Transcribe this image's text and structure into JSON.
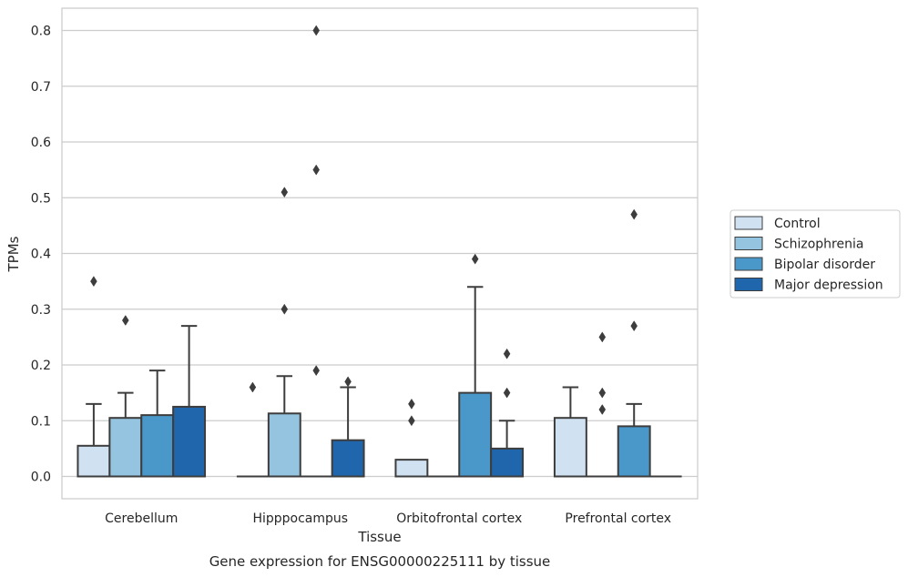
{
  "chart_data": {
    "type": "box",
    "title": "",
    "caption": "Gene expression for ENSG00000225111 by tissue",
    "xlabel": "Tissue",
    "ylabel": "TPMs",
    "ylim": [
      -0.04,
      0.84
    ],
    "yticks": [
      0.0,
      0.1,
      0.2,
      0.3,
      0.4,
      0.5,
      0.6,
      0.7,
      0.8
    ],
    "ytick_labels": [
      "0.0",
      "0.1",
      "0.2",
      "0.3",
      "0.4",
      "0.5",
      "0.6",
      "0.7",
      "0.8"
    ],
    "grid": true,
    "legend_position": "right",
    "categories": [
      "Cerebellum",
      "Hipppocampus",
      "Orbitofrontal cortex",
      "Prefrontal cortex"
    ],
    "series": [
      {
        "name": "Control",
        "color": "#d0e1f2",
        "boxes": [
          {
            "q1": 0.0,
            "q3": 0.055,
            "whisker_high": 0.13,
            "outliers": [
              0.35
            ]
          },
          {
            "q1": 0.0,
            "q3": 0.0,
            "whisker_high": 0.0,
            "outliers": [
              0.16
            ]
          },
          {
            "q1": 0.0,
            "q3": 0.03,
            "whisker_high": 0.03,
            "outliers": [
              0.1,
              0.13
            ]
          },
          {
            "q1": 0.0,
            "q3": 0.105,
            "whisker_high": 0.16,
            "outliers": []
          }
        ]
      },
      {
        "name": "Schizophrenia",
        "color": "#94c4df",
        "boxes": [
          {
            "q1": 0.0,
            "q3": 0.105,
            "whisker_high": 0.15,
            "outliers": [
              0.28
            ]
          },
          {
            "q1": 0.0,
            "q3": 0.113,
            "whisker_high": 0.18,
            "outliers": [
              0.3,
              0.51
            ]
          },
          {
            "q1": 0.0,
            "q3": 0.0,
            "whisker_high": 0.0,
            "outliers": []
          },
          {
            "q1": 0.0,
            "q3": 0.0,
            "whisker_high": 0.0,
            "outliers": [
              0.12,
              0.15,
              0.25
            ]
          }
        ]
      },
      {
        "name": "Bipolar disorder",
        "color": "#4a98c9",
        "boxes": [
          {
            "q1": 0.0,
            "q3": 0.11,
            "whisker_high": 0.19,
            "outliers": []
          },
          {
            "q1": 0.0,
            "q3": 0.0,
            "whisker_high": 0.0,
            "outliers": [
              0.19,
              0.55,
              0.8
            ]
          },
          {
            "q1": 0.0,
            "q3": 0.15,
            "whisker_high": 0.34,
            "outliers": [
              0.39
            ]
          },
          {
            "q1": 0.0,
            "q3": 0.09,
            "whisker_high": 0.13,
            "outliers": [
              0.27,
              0.47
            ]
          }
        ]
      },
      {
        "name": "Major depression",
        "color": "#2066ac",
        "boxes": [
          {
            "q1": 0.0,
            "q3": 0.125,
            "whisker_high": 0.27,
            "outliers": []
          },
          {
            "q1": 0.0,
            "q3": 0.065,
            "whisker_high": 0.16,
            "outliers": [
              0.17
            ]
          },
          {
            "q1": 0.0,
            "q3": 0.05,
            "whisker_high": 0.1,
            "outliers": [
              0.15,
              0.22
            ]
          },
          {
            "q1": 0.0,
            "q3": 0.0,
            "whisker_high": 0.0,
            "outliers": []
          }
        ]
      }
    ]
  }
}
